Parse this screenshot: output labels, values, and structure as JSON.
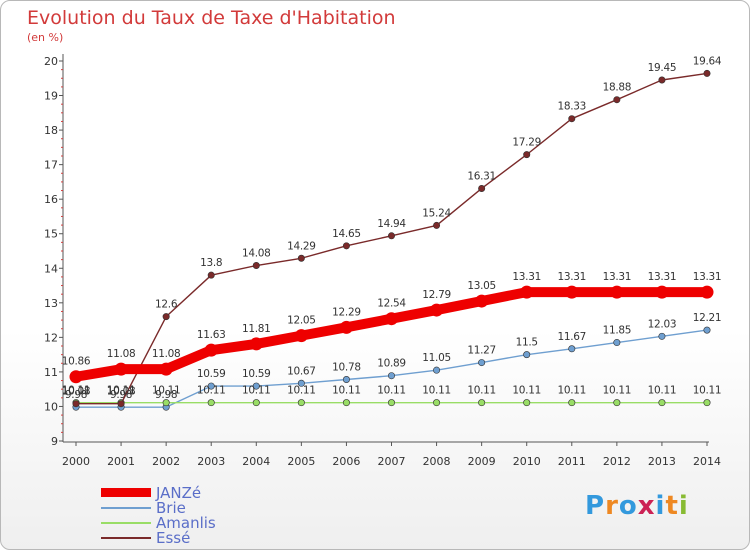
{
  "title": "Evolution du Taux de Taxe d'Habitation",
  "subtitle": "(en %)",
  "chart_data": {
    "type": "line",
    "x": [
      "2000",
      "2001",
      "2002",
      "2003",
      "2004",
      "2005",
      "2006",
      "2007",
      "2008",
      "2009",
      "2010",
      "2011",
      "2012",
      "2013",
      "2014"
    ],
    "ylim": [
      9,
      20
    ],
    "yticks": [
      9,
      10,
      11,
      12,
      13,
      14,
      15,
      16,
      17,
      18,
      19,
      20
    ],
    "grid": false,
    "legend_position": "bottom-left",
    "series": [
      {
        "name": "JANZé",
        "color": "#ee0000",
        "emphasis": true,
        "values": [
          10.86,
          11.08,
          11.08,
          11.63,
          11.81,
          12.05,
          12.29,
          12.54,
          12.79,
          13.05,
          13.31,
          13.31,
          13.31,
          13.31,
          13.31
        ],
        "labels": [
          "10.86",
          "11.08",
          "11.08",
          "11.63",
          "11.81",
          "12.05",
          "12.29",
          "12.54",
          "12.79",
          "13.05",
          "13.31",
          "13.31",
          "13.31",
          "13.31",
          "13.31"
        ]
      },
      {
        "name": "Brie",
        "color": "#6f9fd0",
        "values": [
          9.98,
          9.98,
          9.98,
          10.59,
          10.59,
          10.67,
          10.78,
          10.89,
          11.05,
          11.27,
          11.5,
          11.67,
          11.85,
          12.03,
          12.21
        ],
        "labels": [
          "9.98",
          "9.98",
          "9.98",
          "10.59",
          "10.59",
          "10.67",
          "10.78",
          "10.89",
          "11.05",
          "11.27",
          "11.5",
          "11.67",
          "11.85",
          "12.03",
          "12.21"
        ]
      },
      {
        "name": "Amanlis",
        "color": "#99dd66",
        "values": [
          10.11,
          10.11,
          10.11,
          10.11,
          10.11,
          10.11,
          10.11,
          10.11,
          10.11,
          10.11,
          10.11,
          10.11,
          10.11,
          10.11,
          10.11
        ],
        "labels": [
          "10.11",
          "10.11",
          "10.11",
          "10.11",
          "10.11",
          "10.11",
          "10.11",
          "10.11",
          "10.11",
          "10.11",
          "10.11",
          "10.11",
          "10.11",
          "10.11",
          "10.11"
        ]
      },
      {
        "name": "Essé",
        "color": "#7a2a2a",
        "values": [
          10.08,
          10.08,
          12.6,
          13.8,
          14.08,
          14.29,
          14.65,
          14.94,
          15.24,
          16.31,
          17.29,
          18.33,
          18.88,
          19.45,
          19.64
        ],
        "labels": [
          "10.08",
          "10.08",
          "12.6",
          "13.8",
          "14.08",
          "14.29",
          "14.65",
          "14.94",
          "15.24",
          "16.31",
          "17.29",
          "18.33",
          "18.88",
          "19.45",
          "19.64"
        ]
      }
    ]
  },
  "logo": {
    "letters": [
      "P",
      "r",
      "o",
      "x",
      "i",
      "t",
      "i"
    ],
    "colors": [
      "#3399dd",
      "#ee8822",
      "#3399dd",
      "#cc2255",
      "#3399dd",
      "#ee8822",
      "#88bb33"
    ]
  }
}
